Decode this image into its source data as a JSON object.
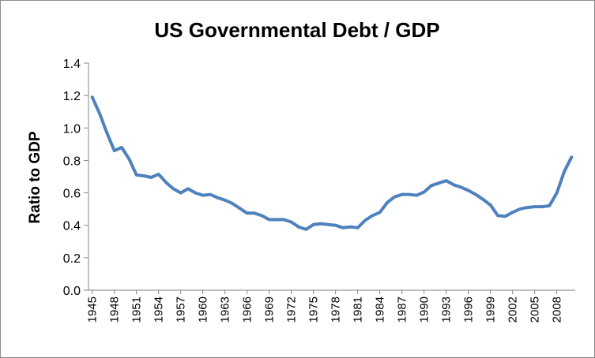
{
  "chart_data": {
    "type": "line",
    "title": "US Governmental Debt / GDP",
    "xlabel": "",
    "ylabel": "Ratio to GDP",
    "ylim": [
      0,
      1.4
    ],
    "yticks": [
      "0.0",
      "0.2",
      "0.4",
      "0.6",
      "0.8",
      "1.0",
      "1.2",
      "1.4"
    ],
    "xticks": [
      "1945",
      "1948",
      "1951",
      "1954",
      "1957",
      "1960",
      "1963",
      "1966",
      "1969",
      "1972",
      "1975",
      "1978",
      "1981",
      "1984",
      "1987",
      "1990",
      "1993",
      "1996",
      "1999",
      "2002",
      "2005",
      "2008"
    ],
    "grid": false,
    "legend": "none",
    "line_color": "#4f81bd",
    "series": [
      {
        "x": [
          1945,
          1946,
          1947,
          1948,
          1949,
          1950,
          1951,
          1952,
          1953,
          1954,
          1955,
          1956,
          1957,
          1958,
          1959,
          1960,
          1961,
          1962,
          1963,
          1964,
          1965,
          1966,
          1967,
          1968,
          1969,
          1970,
          1971,
          1972,
          1973,
          1974,
          1975,
          1976,
          1977,
          1978,
          1979,
          1980,
          1981,
          1982,
          1983,
          1984,
          1985,
          1986,
          1987,
          1988,
          1989,
          1990,
          1991,
          1992,
          1993,
          1994,
          1995,
          1996,
          1997,
          1998,
          1999,
          2000,
          2001,
          2002,
          2003,
          2004,
          2005,
          2006,
          2007,
          2008,
          2009,
          2010
        ],
        "values": [
          1.19,
          1.09,
          0.97,
          0.86,
          0.88,
          0.81,
          0.71,
          0.705,
          0.695,
          0.715,
          0.665,
          0.625,
          0.6,
          0.625,
          0.6,
          0.585,
          0.59,
          0.57,
          0.555,
          0.535,
          0.505,
          0.475,
          0.475,
          0.46,
          0.435,
          0.435,
          0.435,
          0.42,
          0.39,
          0.375,
          0.405,
          0.41,
          0.405,
          0.4,
          0.385,
          0.39,
          0.385,
          0.43,
          0.46,
          0.48,
          0.54,
          0.575,
          0.59,
          0.59,
          0.585,
          0.605,
          0.645,
          0.66,
          0.675,
          0.65,
          0.635,
          0.615,
          0.59,
          0.56,
          0.525,
          0.46,
          0.455,
          0.48,
          0.5,
          0.51,
          0.515,
          0.515,
          0.52,
          0.6,
          0.73,
          0.82
        ]
      }
    ]
  }
}
